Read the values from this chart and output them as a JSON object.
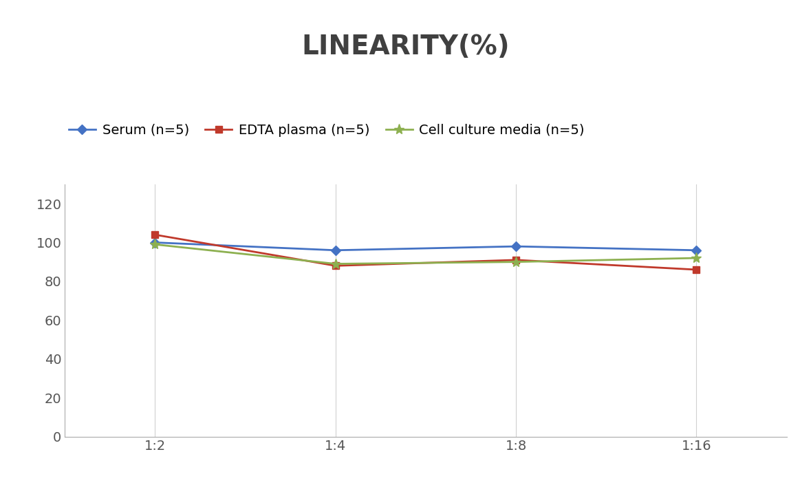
{
  "title": "LINEARITY(%)",
  "x_labels": [
    "1:2",
    "1:4",
    "1:8",
    "1:16"
  ],
  "x_values": [
    0,
    1,
    2,
    3
  ],
  "series": [
    {
      "label": "Serum (n=5)",
      "values": [
        100,
        96,
        98,
        96
      ],
      "color": "#4472C4",
      "marker": "D",
      "marker_size": 7,
      "linewidth": 2.0
    },
    {
      "label": "EDTA plasma (n=5)",
      "values": [
        104,
        88,
        91,
        86
      ],
      "color": "#C0392B",
      "marker": "s",
      "marker_size": 7,
      "linewidth": 2.0
    },
    {
      "label": "Cell culture media (n=5)",
      "values": [
        99,
        89,
        90,
        92
      ],
      "color": "#8DB050",
      "marker": "*",
      "marker_size": 11,
      "linewidth": 2.0
    }
  ],
  "ylim": [
    0,
    130
  ],
  "yticks": [
    0,
    20,
    40,
    60,
    80,
    100,
    120
  ],
  "background_color": "#ffffff",
  "title_fontsize": 28,
  "title_color": "#404040",
  "legend_fontsize": 14,
  "tick_fontsize": 14,
  "grid_color": "#d0d0d0",
  "grid_linewidth": 0.8,
  "spine_color": "#aaaaaa"
}
